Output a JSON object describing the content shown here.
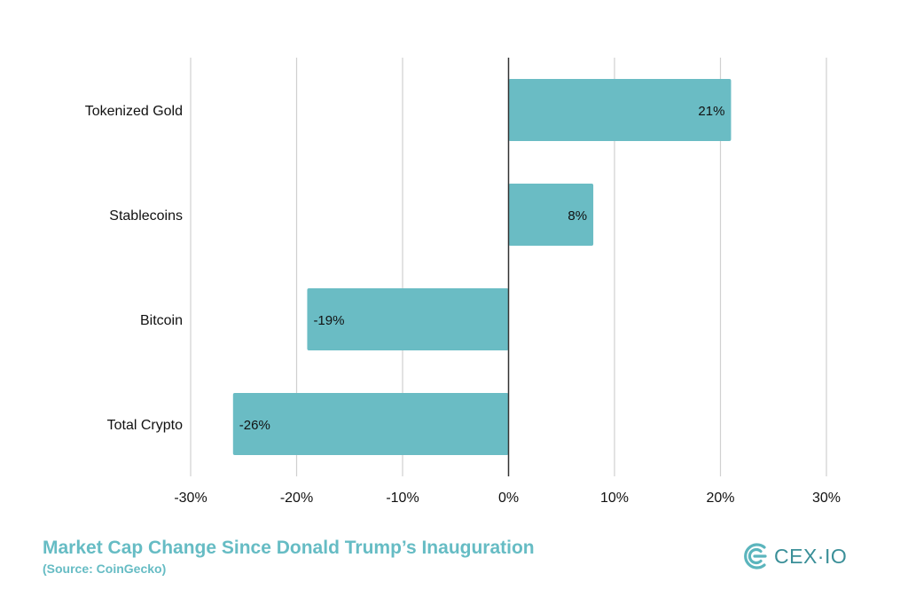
{
  "chart_data": {
    "type": "bar",
    "orientation": "horizontal",
    "title": "Market Cap Change Since Donald Trump’s Inauguration",
    "subtitle": "(Source: CoinGecko)",
    "categories": [
      "Tokenized Gold",
      "Stablecoins",
      "Bitcoin",
      "Total Crypto"
    ],
    "values": [
      21,
      8,
      -19,
      -26
    ],
    "data_labels": [
      "21%",
      "8%",
      "-19%",
      "-26%"
    ],
    "xlim": [
      -30,
      30
    ],
    "ticks": [
      -30,
      -20,
      -10,
      0,
      10,
      20,
      30
    ],
    "tick_labels": [
      "-30%",
      "-20%",
      "-10%",
      "0%",
      "10%",
      "20%",
      "30%"
    ],
    "xlabel": "",
    "ylabel": "",
    "grid": true,
    "bar_color": "#6abcc4",
    "grid_color": "#d0d0d0",
    "zero_line_color": "#333333"
  },
  "caption": {
    "title": "Market Cap Change Since Donald Trump’s Inauguration",
    "source": "(Source: CoinGecko)",
    "color": "#66bcc4"
  },
  "logo": {
    "text": "CEX·IO",
    "icon": "cex-io-logo-icon",
    "color": "#3a8f98"
  }
}
